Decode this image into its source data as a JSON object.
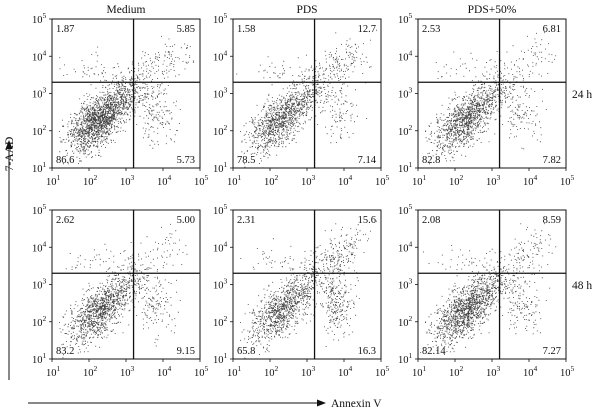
{
  "chart_data": {
    "type": "scatter",
    "columns": [
      "Medium",
      "PDS",
      "PDS+50%"
    ],
    "rows": [
      "24 h",
      "48 h"
    ],
    "xlabel": "Annexin V",
    "ylabel": "7-AAD",
    "x_scale": "log",
    "y_scale": "log",
    "xlim": [
      10,
      100000
    ],
    "ylim": [
      10,
      100000
    ],
    "x_ticks": [
      "10",
      "10",
      "10",
      "10",
      "10"
    ],
    "x_tick_exponents": [
      "1",
      "2",
      "3",
      "4",
      "5"
    ],
    "y_ticks": [
      "10",
      "10",
      "10",
      "10",
      "10"
    ],
    "y_tick_exponents": [
      "1",
      "2",
      "3",
      "4",
      "5"
    ],
    "panels": [
      {
        "row": "24 h",
        "column": "Medium",
        "gate_x": 1600,
        "gate_y": 2000,
        "quadrants": {
          "upper_left": "1.87",
          "upper_right": "5.85",
          "lower_left": "86.6",
          "lower_right": "5.73"
        }
      },
      {
        "row": "24 h",
        "column": "PDS",
        "gate_x": 1600,
        "gate_y": 2000,
        "quadrants": {
          "upper_left": "1.58",
          "upper_right": "12.7",
          "lower_left": "78.5",
          "lower_right": "7.14"
        }
      },
      {
        "row": "24 h",
        "column": "PDS+50%",
        "gate_x": 1600,
        "gate_y": 2000,
        "quadrants": {
          "upper_left": "2.53",
          "upper_right": "6.81",
          "lower_left": "82.8",
          "lower_right": "7.82"
        }
      },
      {
        "row": "48 h",
        "column": "Medium",
        "gate_x": 1600,
        "gate_y": 2000,
        "quadrants": {
          "upper_left": "2.62",
          "upper_right": "5.00",
          "lower_left": "83.2",
          "lower_right": "9.15"
        }
      },
      {
        "row": "48 h",
        "column": "PDS",
        "gate_x": 1600,
        "gate_y": 2000,
        "quadrants": {
          "upper_left": "2.31",
          "upper_right": "15.6",
          "lower_left": "65.8",
          "lower_right": "16.3"
        }
      },
      {
        "row": "48 h",
        "column": "PDS+50%",
        "gate_x": 1600,
        "gate_y": 2000,
        "quadrants": {
          "upper_left": "2.08",
          "upper_right": "8.59",
          "lower_left": "82.14",
          "lower_right": "7.27"
        }
      }
    ],
    "grid": false,
    "point_color": "#000000"
  }
}
